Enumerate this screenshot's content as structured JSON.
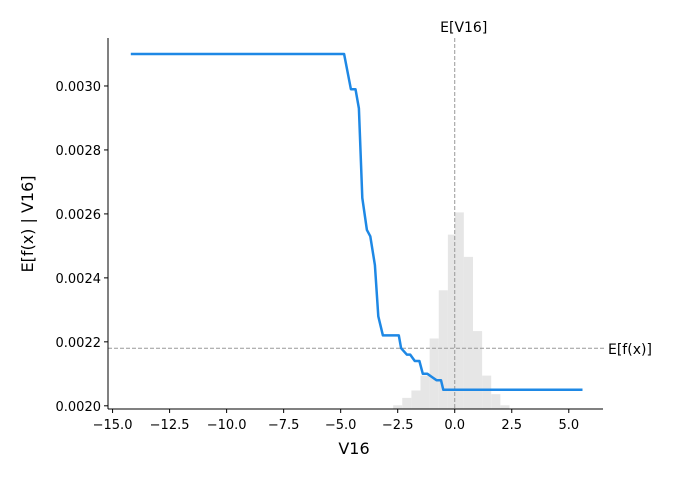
{
  "chart_data": {
    "type": "line",
    "title": "",
    "xlabel": "V16",
    "ylabel": "E[f(x) | V16]",
    "xlim": [
      -15.2,
      6.5
    ],
    "ylim": [
      0.00199,
      0.00315
    ],
    "grid": false,
    "x_ticks": [
      -15.0,
      -12.5,
      -10.0,
      -7.5,
      -5.0,
      -2.5,
      0.0,
      2.5,
      5.0
    ],
    "x_tick_labels": [
      "−15.0",
      "−12.5",
      "−10.0",
      "−7.5",
      "−5.0",
      "−2.5",
      "0.0",
      "2.5",
      "5.0"
    ],
    "y_ticks": [
      0.002,
      0.0022,
      0.0024,
      0.0026,
      0.0028,
      0.003
    ],
    "y_tick_labels": [
      "0.0020",
      "0.0022",
      "0.0024",
      "0.0026",
      "0.0028",
      "0.0030"
    ],
    "series": [
      {
        "color": "#1e88e5",
        "x": [
          -14.2,
          -4.85,
          -4.55,
          -4.35,
          -4.2,
          -4.05,
          -3.85,
          -3.7,
          -3.5,
          -3.35,
          -3.15,
          -2.85,
          -2.45,
          -2.35,
          -2.1,
          -1.95,
          -1.75,
          -1.55,
          -1.4,
          -1.2,
          -1.0,
          -0.8,
          -0.6,
          -0.5,
          5.6
        ],
        "y": [
          0.0031,
          0.0031,
          0.00299,
          0.00299,
          0.00293,
          0.00265,
          0.00255,
          0.00253,
          0.00244,
          0.00228,
          0.00222,
          0.00222,
          0.00222,
          0.00218,
          0.00216,
          0.00216,
          0.00214,
          0.00214,
          0.0021,
          0.0021,
          0.00209,
          0.00208,
          0.00208,
          0.00205,
          0.00205
        ]
      }
    ],
    "histogram": {
      "color": "#e6e6e6",
      "bin_width": 0.4,
      "bins": [
        {
          "x0": -2.7,
          "frac": 0.01
        },
        {
          "x0": -2.3,
          "frac": 0.03
        },
        {
          "x0": -1.9,
          "frac": 0.05
        },
        {
          "x0": -1.5,
          "frac": 0.09
        },
        {
          "x0": -1.1,
          "frac": 0.19
        },
        {
          "x0": -0.7,
          "frac": 0.32
        },
        {
          "x0": -0.3,
          "frac": 0.47
        },
        {
          "x0": 0.0,
          "frac": 0.53
        },
        {
          "x0": 0.4,
          "frac": 0.41
        },
        {
          "x0": 0.8,
          "frac": 0.21
        },
        {
          "x0": 1.2,
          "frac": 0.09
        },
        {
          "x0": 1.6,
          "frac": 0.04
        },
        {
          "x0": 2.0,
          "frac": 0.01
        }
      ]
    },
    "reference_lines": {
      "vertical": {
        "x": 0.0,
        "label": "E[V16]"
      },
      "horizontal": {
        "y": 0.00218,
        "label": "E[f(x)]"
      }
    }
  }
}
